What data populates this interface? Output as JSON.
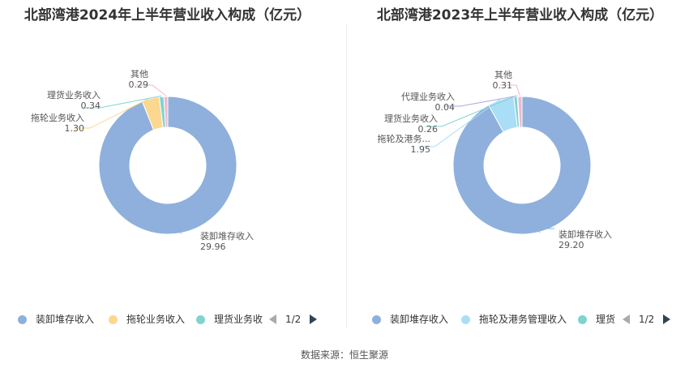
{
  "source": "数据来源：恒生聚源",
  "chart_data": [
    {
      "type": "pie",
      "title": "北部湾港2024年上半年营业收入构成（亿元）",
      "unit": "亿元",
      "series": [
        {
          "name": "装卸堆存收入",
          "value": 29.96,
          "label": "装卸堆存收入",
          "color": "#8fb0dc"
        },
        {
          "name": "拖轮业务收入",
          "value": 1.3,
          "label": "拖轮业务收入",
          "color": "#fbd78f"
        },
        {
          "name": "理货业务收入",
          "value": 0.34,
          "label": "理货业务收入",
          "color": "#7fd3d4"
        },
        {
          "name": "其他",
          "value": 0.29,
          "label": "其他",
          "color": "#f0b7c9"
        }
      ],
      "legend": {
        "items": [
          "装卸堆存收入",
          "拖轮业务收入",
          "理货业务收"
        ],
        "page": "1/2"
      }
    },
    {
      "type": "pie",
      "title": "北部湾港2023年上半年营业收入构成（亿元）",
      "unit": "亿元",
      "series": [
        {
          "name": "装卸堆存收入",
          "value": 29.2,
          "label": "装卸堆存收入",
          "color": "#8fb0dc"
        },
        {
          "name": "拖轮及港务管理收入",
          "value": 1.95,
          "label": "拖轮及港务...",
          "color": "#a9def6"
        },
        {
          "name": "理货业务收入",
          "value": 0.26,
          "label": "理货业务收入",
          "color": "#7fd3d4"
        },
        {
          "name": "代理业务收入",
          "value": 0.04,
          "label": "代理业务收入",
          "color": "#a8a8e0"
        },
        {
          "name": "其他",
          "value": 0.31,
          "label": "其他",
          "color": "#f0b7c9"
        }
      ],
      "legend": {
        "items": [
          "装卸堆存收入",
          "拖轮及港务管理收入",
          "理货"
        ],
        "page": "1/2"
      }
    }
  ]
}
